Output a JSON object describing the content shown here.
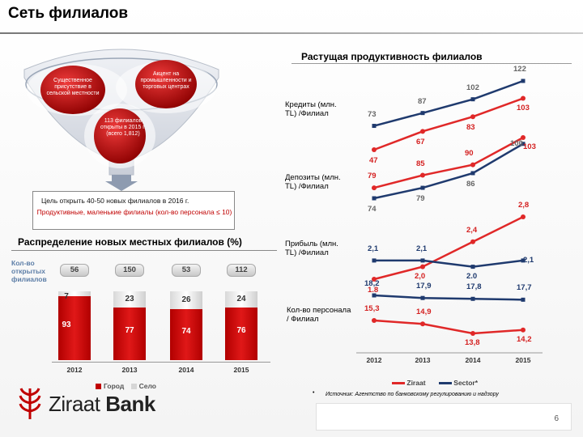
{
  "title": "Сеть филиалов",
  "right_heading": "Растущая продуктивность филиалов",
  "funnel": {
    "left_label": "Существенное присутствие в сельской местности",
    "right_label": "Акцент на промышленности и торговых центрах",
    "center_label": "113 филиалов открыты в 2015 г. (всего 1,812)"
  },
  "goal": {
    "line1": "Цель открыть 40-50 новых филиалов в 2016 г.",
    "line2": "Продуктивные, маленькие филиалы (кол-во персонала ≤ 10)"
  },
  "left_chart": {
    "heading": "Распределение новых местных филиалов (%)",
    "branch_count_label": "Кол-во открытых филиалов",
    "legend_city": "Город",
    "legend_rural": "Село",
    "colors": {
      "city": "#c00000",
      "rural": "#e8e8e8",
      "label_blue": "#5d7ea7"
    }
  },
  "right_charts": {
    "credits_label": "Кредиты (млн. TL) /Филиал",
    "deposits_label": "Депозиты (млн. TL) /Филиал",
    "profit_label": "Прибыль (млн. TL) /Филиал",
    "staff_label": "Кол-во персонала / Филиал",
    "legend_ziraat": "Ziraat",
    "legend_sector": "Sector*",
    "source_bullet": "•",
    "source": "Источник: Агентство по банковскому регулированию и надзору",
    "colors": {
      "ziraat": "#e02828",
      "sector": "#1f3a6e"
    }
  },
  "logo": {
    "brand_light": "Ziraat",
    "brand_bold": "Bank"
  },
  "page_number": "6",
  "chart_data": [
    {
      "type": "bar",
      "title": "Распределение новых местных филиалов (%)",
      "categories": [
        "2012",
        "2013",
        "2014",
        "2015"
      ],
      "series": [
        {
          "name": "Город",
          "values": [
            93,
            77,
            74,
            76
          ]
        },
        {
          "name": "Село",
          "values": [
            7,
            23,
            26,
            24
          ]
        }
      ],
      "totals_label": "Кол-во открытых филиалов",
      "totals": [
        56,
        150,
        53,
        112
      ],
      "legend": "bottom"
    },
    {
      "type": "line",
      "title": "Кредиты (млн. TL) /Филиал",
      "categories": [
        "2012",
        "2013",
        "2014",
        "2015"
      ],
      "series": [
        {
          "name": "Ziraat",
          "values": [
            47,
            67,
            83,
            103
          ]
        },
        {
          "name": "Sector*",
          "values": [
            73,
            87,
            102,
            122
          ]
        }
      ]
    },
    {
      "type": "line",
      "title": "Депозиты (млн. TL) /Филиал",
      "categories": [
        "2012",
        "2013",
        "2014",
        "2015"
      ],
      "series": [
        {
          "name": "Ziraat",
          "values": [
            79,
            85,
            90,
            103
          ]
        },
        {
          "name": "Sector*",
          "values": [
            74,
            79,
            86,
            100
          ]
        }
      ]
    },
    {
      "type": "line",
      "title": "Прибыль (млн. TL) /Филиал",
      "categories": [
        "2012",
        "2013",
        "2014",
        "2015"
      ],
      "series": [
        {
          "name": "Ziraat",
          "values": [
            "1.8",
            "2,0",
            "2,4",
            "2,8"
          ]
        },
        {
          "name": "Sector*",
          "values": [
            "2,1",
            "2,1",
            "2.0",
            "2,1"
          ]
        }
      ]
    },
    {
      "type": "line",
      "title": "Кол-во персонала / Филиал",
      "categories": [
        "2012",
        "2013",
        "2014",
        "2015"
      ],
      "series": [
        {
          "name": "Ziraat",
          "values": [
            "15,3",
            "14,9",
            "13,8",
            "14,2"
          ]
        },
        {
          "name": "Sector*",
          "values": [
            "18,2",
            "17,9",
            "17,8",
            "17,7"
          ]
        }
      ]
    }
  ]
}
